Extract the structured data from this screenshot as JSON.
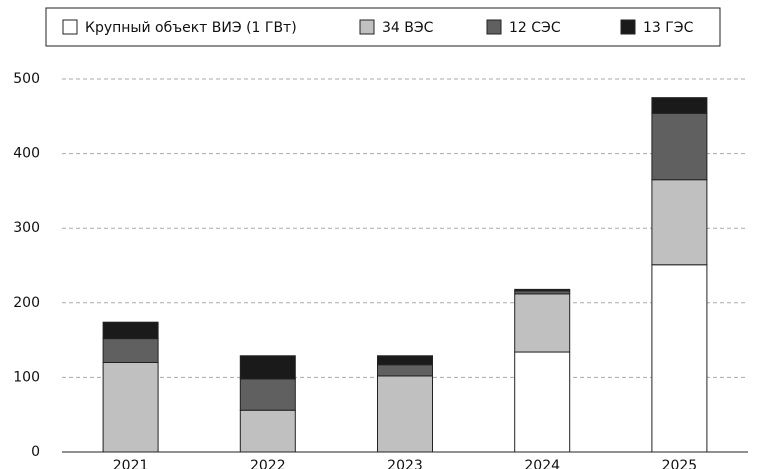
{
  "chart_data": {
    "type": "stacked_bar",
    "categories": [
      "2021",
      "2022",
      "2023",
      "2024",
      "2025"
    ],
    "series": [
      {
        "name": "Крупный объект ВИЭ (1 ГВт)",
        "color": "#ffffff",
        "values": [
          0,
          0,
          0,
          134,
          251
        ]
      },
      {
        "name": "34 ВЭС",
        "color": "#c0c0c0",
        "values": [
          120,
          56,
          102,
          78,
          114
        ]
      },
      {
        "name": "12 СЭС",
        "color": "#606060",
        "values": [
          32,
          42,
          15,
          4,
          89
        ]
      },
      {
        "name": "13 ГЭС",
        "color": "#1a1a1a",
        "values": [
          22,
          31,
          12,
          2,
          21
        ]
      }
    ],
    "ylim": [
      0,
      500
    ],
    "yticks": [
      0,
      100,
      200,
      300,
      400,
      500
    ],
    "grid": true,
    "legend": "top"
  }
}
